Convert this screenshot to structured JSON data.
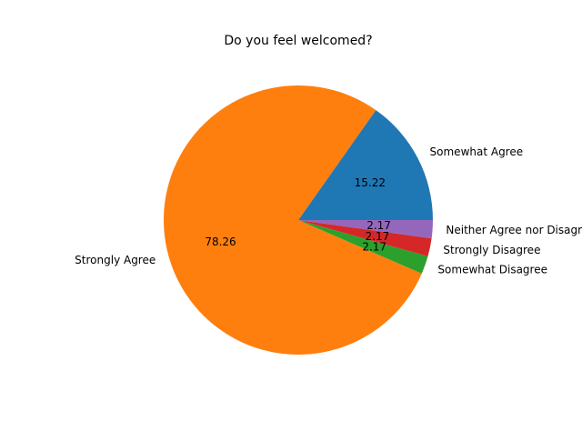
{
  "chart_data": {
    "type": "pie",
    "title": "Do you feel welcomed?",
    "labels": [
      "Somewhat Agree",
      "Strongly Agree",
      "Somewhat Disagree",
      "Strongly Disagree",
      "Neither Agree nor Disagree"
    ],
    "values": [
      15.22,
      78.26,
      2.17,
      2.17,
      2.17
    ],
    "autopct_labels": [
      "15.22",
      "78.26",
      "2.17",
      "2.17",
      "2.17"
    ],
    "colors": [
      "#1f77b4",
      "#ff7f0e",
      "#2ca02c",
      "#d62728",
      "#9467bd"
    ],
    "start_angle_deg": 0,
    "direction": "counterclockwise"
  }
}
